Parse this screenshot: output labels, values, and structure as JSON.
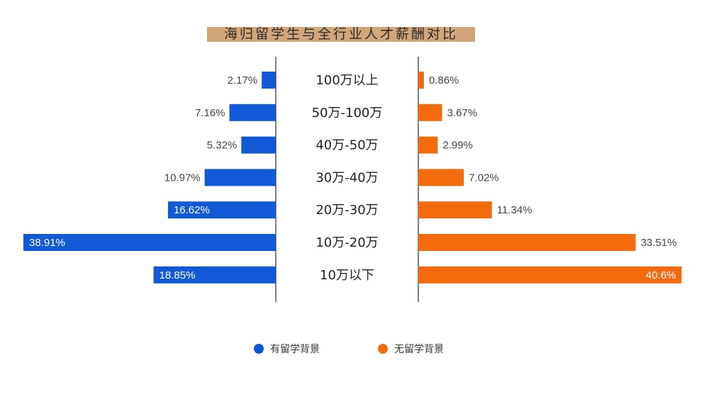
{
  "chart_data": {
    "type": "bar",
    "title": "海归留学生与全行业人才薪酬对比",
    "categories": [
      "100万以上",
      "50万-100万",
      "40万-50万",
      "30万-40万",
      "20万-30万",
      "10万-20万",
      "10万以下"
    ],
    "series": [
      {
        "name": "有留学背景",
        "color": "#1159d6",
        "values": [
          2.17,
          7.16,
          5.32,
          10.97,
          16.62,
          38.91,
          18.85
        ],
        "labels": [
          "2.17%",
          "7.16%",
          "5.32%",
          "10.97%",
          "16.62%",
          "38.91%",
          "18.85%"
        ]
      },
      {
        "name": "无留学背景",
        "color": "#f36b0e",
        "values": [
          0.86,
          3.67,
          2.99,
          7.02,
          11.34,
          33.51,
          40.6
        ],
        "labels": [
          "0.86%",
          "3.67%",
          "2.99%",
          "7.02%",
          "11.34%",
          "33.51%",
          "40.6%"
        ]
      }
    ],
    "title_band_color": "#d2a679",
    "axis_color": "#555555",
    "legend_position": "bottom-center",
    "grid": false
  }
}
